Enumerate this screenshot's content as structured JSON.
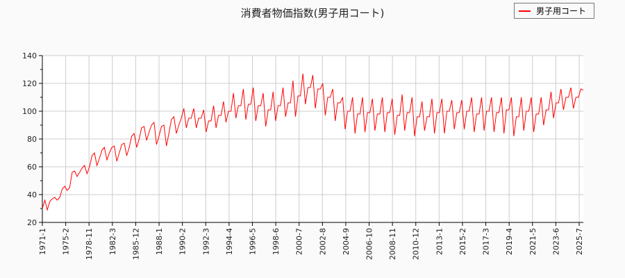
{
  "chart_data": {
    "type": "line",
    "title": "消費者物価指数(男子用コート)",
    "xlabel": "",
    "ylabel": "",
    "ylim": [
      20,
      140
    ],
    "yticks": [
      20,
      40,
      60,
      80,
      100,
      120,
      140
    ],
    "grid": true,
    "legend_placement": "top-right",
    "x_tick_labels": [
      "1971-1",
      "1975-2",
      "1978-11",
      "1982-3",
      "1985-12",
      "1988-1",
      "1990-2",
      "1992-3",
      "1994-4",
      "1996-5",
      "1998-6",
      "2000-7",
      "2002-8",
      "2004-9",
      "2006-10",
      "2008-11",
      "2010-12",
      "2013-1",
      "2015-2",
      "2017-3",
      "2019-4",
      "2021-5",
      "2023-6",
      "2025-7"
    ],
    "series": [
      {
        "name": "男子用コート",
        "color": "#ff0000",
        "values": [
          30,
          36,
          29,
          35,
          37,
          38,
          36,
          38,
          44,
          46,
          43,
          45,
          56,
          57,
          53,
          56,
          59,
          61,
          55,
          60,
          68,
          70,
          61,
          66,
          72,
          74,
          65,
          70,
          74,
          75,
          64,
          70,
          76,
          77,
          68,
          74,
          82,
          84,
          74,
          80,
          88,
          89,
          79,
          85,
          90,
          92,
          76,
          82,
          89,
          90,
          75,
          84,
          94,
          96,
          84,
          90,
          95,
          102,
          88,
          95,
          95,
          102,
          88,
          95,
          95,
          101,
          85,
          93,
          93,
          104,
          88,
          97,
          97,
          107,
          92,
          100,
          100,
          113,
          95,
          104,
          104,
          116,
          94,
          105,
          105,
          117,
          93,
          104,
          104,
          113,
          89,
          101,
          101,
          114,
          93,
          104,
          104,
          117,
          96,
          106,
          106,
          122,
          96,
          111,
          111,
          127,
          105,
          117,
          117,
          126,
          102,
          116,
          116,
          120,
          97,
          110,
          110,
          116,
          93,
          106,
          106,
          110,
          87,
          100,
          100,
          110,
          84,
          98,
          98,
          110,
          85,
          99,
          99,
          109,
          86,
          98,
          98,
          110,
          85,
          99,
          99,
          109,
          83,
          97,
          97,
          112,
          86,
          99,
          99,
          110,
          82,
          96,
          96,
          107,
          86,
          96,
          96,
          109,
          84,
          99,
          99,
          109,
          84,
          100,
          100,
          108,
          87,
          99,
          99,
          108,
          87,
          100,
          100,
          110,
          85,
          98,
          98,
          110,
          86,
          100,
          100,
          110,
          85,
          99,
          99,
          110,
          84,
          101,
          101,
          110,
          82,
          96,
          96,
          110,
          86,
          100,
          100,
          110,
          85,
          98,
          98,
          110,
          90,
          101,
          101,
          114,
          95,
          106,
          106,
          116,
          101,
          110,
          110,
          117,
          102,
          110,
          110,
          116,
          115
        ]
      }
    ]
  }
}
